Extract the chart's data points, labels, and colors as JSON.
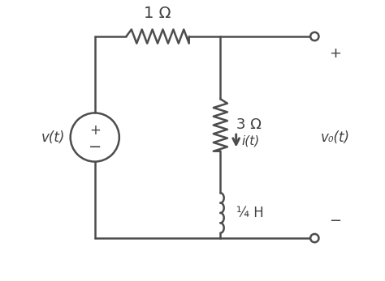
{
  "bg_color": "#ffffff",
  "line_color": "#4d4d4d",
  "line_width": 1.8,
  "text_color": "#404040",
  "label_1ohm": "1 Ω",
  "label_3ohm": "3 Ω",
  "label_ind": "¼ H",
  "label_vt": "v(t)",
  "label_vot": "v₀(t)",
  "label_it": "i(t)",
  "label_plus_top": "+",
  "label_minus_bot": "−",
  "figsize": [
    4.74,
    3.47
  ],
  "dpi": 100
}
